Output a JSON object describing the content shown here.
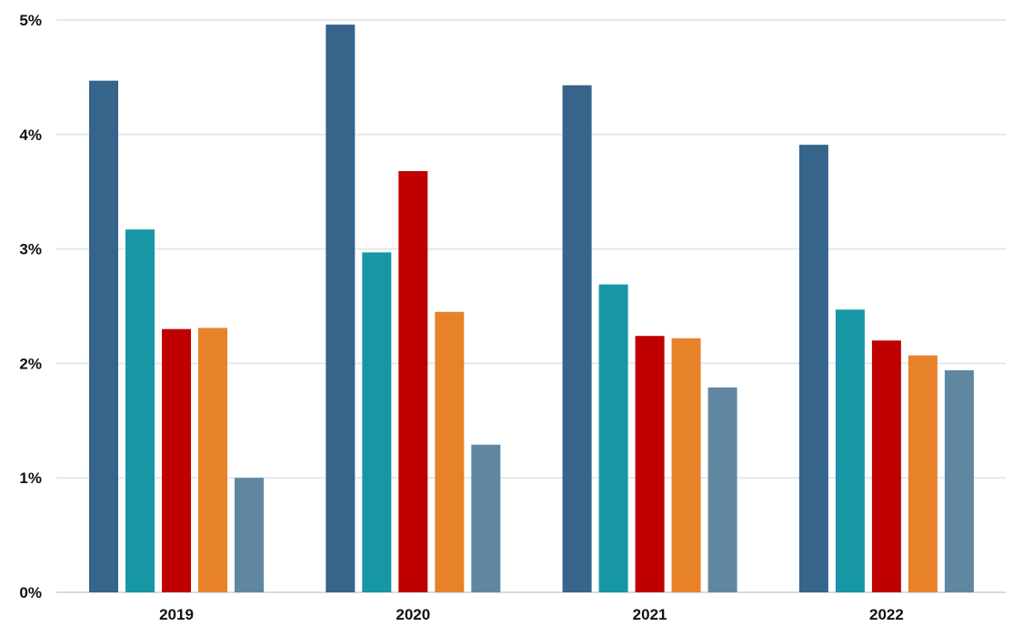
{
  "chart_data": {
    "type": "bar",
    "title": "",
    "xlabel": "",
    "ylabel": "",
    "categories": [
      "2019",
      "2020",
      "2021",
      "2022"
    ],
    "ylim": [
      0,
      5
    ],
    "yticks": [
      0,
      1,
      2,
      3,
      4,
      5
    ],
    "ytick_labels": [
      "0%",
      "1%",
      "2%",
      "3%",
      "4%",
      "5%"
    ],
    "grid": true,
    "legend": "none",
    "series": [
      {
        "color": "#36648b",
        "values": [
          4.47,
          4.96,
          4.43,
          3.91
        ]
      },
      {
        "color": "#1797a5",
        "values": [
          3.17,
          2.97,
          2.69,
          2.47
        ]
      },
      {
        "color": "#c00000",
        "values": [
          2.3,
          3.68,
          2.24,
          2.2
        ]
      },
      {
        "color": "#e8822a",
        "values": [
          2.31,
          2.45,
          2.22,
          2.07
        ]
      },
      {
        "color": "#5f87a1",
        "values": [
          1.0,
          1.29,
          1.79,
          1.94
        ]
      }
    ]
  }
}
